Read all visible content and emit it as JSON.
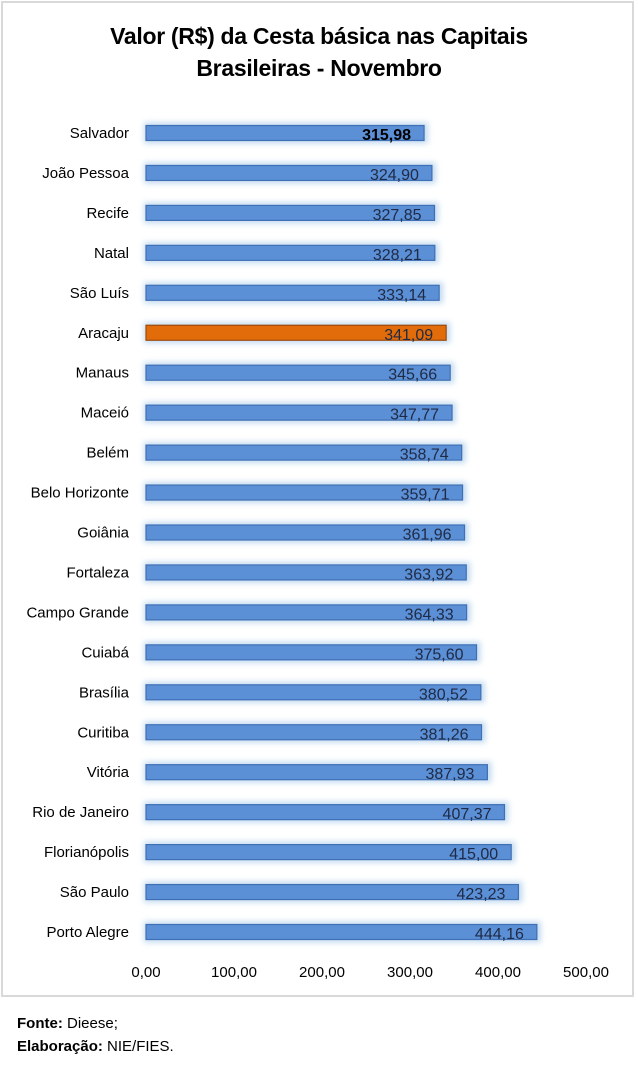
{
  "chart_data": {
    "type": "bar",
    "orientation": "horizontal",
    "title": "Valor (R$) da Cesta básica nas Capitais Brasileiras - Novembro",
    "title_lines": [
      "Valor (R$) da Cesta básica nas Capitais",
      "Brasileiras - Novembro"
    ],
    "categories": [
      "Salvador",
      "João Pessoa",
      "Recife",
      "Natal",
      "São Luís",
      "Aracaju",
      "Manaus",
      "Maceió",
      "Belém",
      "Belo Horizonte",
      "Goiânia",
      "Fortaleza",
      "Campo Grande",
      "Cuiabá",
      "Brasília",
      "Curitiba",
      "Vitória",
      "Rio de Janeiro",
      "Florianópolis",
      "São Paulo",
      "Porto Alegre"
    ],
    "values": [
      315.98,
      324.9,
      327.85,
      328.21,
      333.14,
      341.09,
      345.66,
      347.77,
      358.74,
      359.71,
      361.96,
      363.92,
      364.33,
      375.6,
      380.52,
      381.26,
      387.93,
      407.37,
      415.0,
      423.23,
      444.16
    ],
    "value_labels": [
      "315,98",
      "324,90",
      "327,85",
      "328,21",
      "333,14",
      "341,09",
      "345,66",
      "347,77",
      "358,74",
      "359,71",
      "361,96",
      "363,92",
      "364,33",
      "375,60",
      "380,52",
      "381,26",
      "387,93",
      "407,37",
      "415,00",
      "423,23",
      "444,16"
    ],
    "bold_label_index": 0,
    "highlight_index": 5,
    "xlim": [
      0,
      500
    ],
    "x_ticks": [
      0,
      100,
      200,
      300,
      400,
      500
    ],
    "x_tick_labels": [
      "0,00",
      "100,00",
      "200,00",
      "300,00",
      "400,00",
      "500,00"
    ],
    "xlabel": "",
    "ylabel": "",
    "grid": false,
    "legend": "none",
    "colors": {
      "bar": "#5b8fd6",
      "bar_edge": "#3f6fb5",
      "highlight": "#e36c0a",
      "highlight_edge": "#9c4a0c",
      "glow": "#bdd7ee"
    }
  },
  "footer": {
    "source_label": "Fonte:",
    "source_value": " Dieese;",
    "credit_label": "Elaboração:",
    "credit_value": " NIE/FIES."
  }
}
